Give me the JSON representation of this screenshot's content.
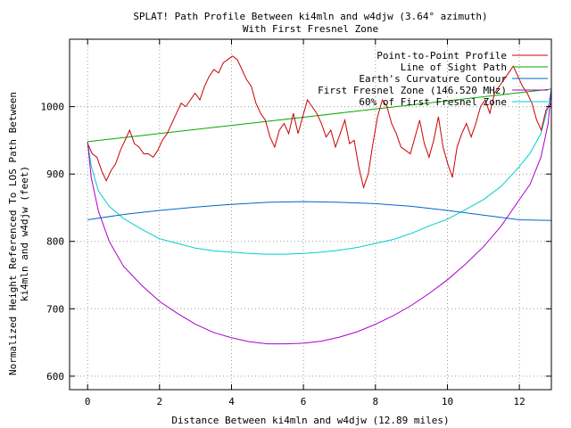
{
  "chart_data": {
    "type": "line",
    "title": "SPLAT! Path Profile Between ki4mln and w4djw (3.64° azimuth)",
    "subtitle": "With First Fresnel Zone",
    "xlabel": "Distance Between ki4mln and w4djw (12.89 miles)",
    "ylabel_line1": "Normalized Height Referenced To LOS Path Between",
    "ylabel_line2": "ki4mln and w4djw (feet)",
    "xlim": [
      -0.5,
      12.89
    ],
    "ylim": [
      580,
      1100
    ],
    "x_ticks": [
      0,
      2,
      4,
      6,
      8,
      10,
      12
    ],
    "y_ticks": [
      600,
      700,
      800,
      900,
      1000
    ],
    "grid": true,
    "legend_position": "top-right",
    "series": [
      {
        "name": "Point-to-Point Profile",
        "color": "#cc0000",
        "x": [
          0.0,
          0.13,
          0.26,
          0.39,
          0.52,
          0.65,
          0.78,
          0.91,
          1.04,
          1.17,
          1.3,
          1.43,
          1.56,
          1.69,
          1.82,
          1.95,
          2.08,
          2.21,
          2.34,
          2.47,
          2.6,
          2.73,
          2.86,
          2.99,
          3.12,
          3.25,
          3.38,
          3.51,
          3.64,
          3.77,
          3.9,
          4.03,
          4.16,
          4.29,
          4.42,
          4.55,
          4.68,
          4.81,
          4.94,
          5.07,
          5.2,
          5.33,
          5.46,
          5.59,
          5.72,
          5.85,
          5.98,
          6.11,
          6.24,
          6.37,
          6.5,
          6.63,
          6.76,
          6.89,
          7.02,
          7.15,
          7.28,
          7.41,
          7.54,
          7.67,
          7.8,
          7.93,
          8.06,
          8.19,
          8.32,
          8.45,
          8.58,
          8.71,
          8.84,
          8.97,
          9.1,
          9.23,
          9.36,
          9.49,
          9.62,
          9.75,
          9.88,
          10.01,
          10.14,
          10.27,
          10.4,
          10.53,
          10.66,
          10.79,
          10.92,
          11.05,
          11.18,
          11.31,
          11.44,
          11.57,
          11.7,
          11.83,
          11.96,
          12.09,
          12.22,
          12.35,
          12.48,
          12.61,
          12.74,
          12.89
        ],
        "values": [
          945,
          930,
          925,
          905,
          890,
          905,
          915,
          935,
          950,
          965,
          945,
          940,
          930,
          930,
          925,
          935,
          950,
          960,
          975,
          990,
          1005,
          1000,
          1010,
          1020,
          1010,
          1030,
          1045,
          1055,
          1050,
          1065,
          1070,
          1075,
          1070,
          1055,
          1040,
          1030,
          1005,
          990,
          980,
          955,
          940,
          965,
          975,
          960,
          990,
          960,
          985,
          1010,
          1000,
          990,
          975,
          955,
          965,
          940,
          960,
          980,
          945,
          950,
          910,
          880,
          900,
          945,
          985,
          1010,
          1000,
          975,
          960,
          940,
          935,
          930,
          955,
          980,
          945,
          925,
          950,
          985,
          940,
          915,
          895,
          940,
          960,
          975,
          955,
          975,
          1000,
          1010,
          990,
          1020,
          1030,
          1040,
          1050,
          1060,
          1045,
          1030,
          1020,
          1005,
          980,
          965,
          995,
          1005
        ]
      },
      {
        "name": "Line of Sight Path",
        "color": "#00aa00",
        "x": [
          0,
          12.89
        ],
        "values": [
          948,
          1026
        ]
      },
      {
        "name": "Earth's Curvature Contour",
        "color": "#0066cc",
        "x": [
          0,
          1,
          2,
          3,
          4,
          5,
          6,
          7,
          8,
          9,
          10,
          11,
          12,
          12.89
        ],
        "values": [
          832,
          840,
          846,
          851,
          855,
          858,
          859,
          858,
          856,
          852,
          846,
          839,
          832,
          831
        ]
      },
      {
        "name": "First Fresnel Zone (146.520 MHz)",
        "color": "#aa00cc",
        "x": [
          0,
          0.1,
          0.3,
          0.6,
          1,
          1.5,
          2,
          2.5,
          3,
          3.5,
          4,
          4.5,
          5,
          5.5,
          6,
          6.5,
          7,
          7.5,
          8,
          8.5,
          9,
          9.5,
          10,
          10.5,
          11,
          11.5,
          12,
          12.3,
          12.6,
          12.8,
          12.89
        ],
        "values": [
          948,
          895,
          845,
          800,
          763,
          735,
          711,
          693,
          677,
          665,
          657,
          651,
          648,
          648,
          649,
          652,
          658,
          666,
          677,
          690,
          705,
          723,
          743,
          766,
          792,
          823,
          862,
          885,
          925,
          975,
          1026
        ]
      },
      {
        "name": "60% of First Fresnel Zone",
        "color": "#00cccc",
        "x": [
          0,
          0.1,
          0.3,
          0.6,
          1,
          1.5,
          2,
          2.5,
          3,
          3.5,
          4,
          4.5,
          5,
          5.5,
          6,
          6.5,
          7,
          7.5,
          8,
          8.5,
          9,
          9.5,
          10,
          10.5,
          11,
          11.5,
          12,
          12.3,
          12.6,
          12.8,
          12.89
        ],
        "values": [
          948,
          912,
          875,
          852,
          834,
          818,
          804,
          797,
          790,
          786,
          784,
          782,
          781,
          781,
          782,
          784,
          787,
          791,
          797,
          803,
          812,
          823,
          833,
          847,
          862,
          882,
          911,
          931,
          960,
          1000,
          1026
        ]
      }
    ]
  }
}
